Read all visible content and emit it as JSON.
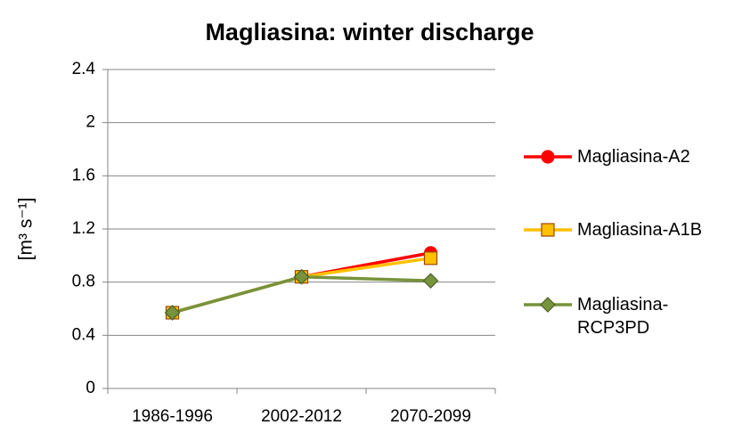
{
  "chart_data": {
    "type": "line",
    "title": "Magliasina: winter discharge",
    "y_label": "[m³ s⁻¹]",
    "categories": [
      "1986-1996",
      "2002-2012",
      "2070-2099"
    ],
    "series": [
      {
        "name": "Magliasina-A2",
        "color": "#ff0000",
        "marker": "circle",
        "values": [
          0.57,
          0.84,
          1.02
        ]
      },
      {
        "name": "Magliasina-A1B",
        "color": "#ffc000",
        "marker": "square",
        "values": [
          0.57,
          0.84,
          0.98
        ]
      },
      {
        "name": "Magliasina-RCP3PD",
        "color": "#77933c",
        "marker": "diamond",
        "values": [
          0.57,
          0.84,
          0.81
        ]
      }
    ],
    "ylim": [
      0,
      2.4
    ],
    "yticks": [
      0,
      0.4,
      0.8,
      1.2,
      1.6,
      2,
      2.4
    ],
    "grid": true
  }
}
